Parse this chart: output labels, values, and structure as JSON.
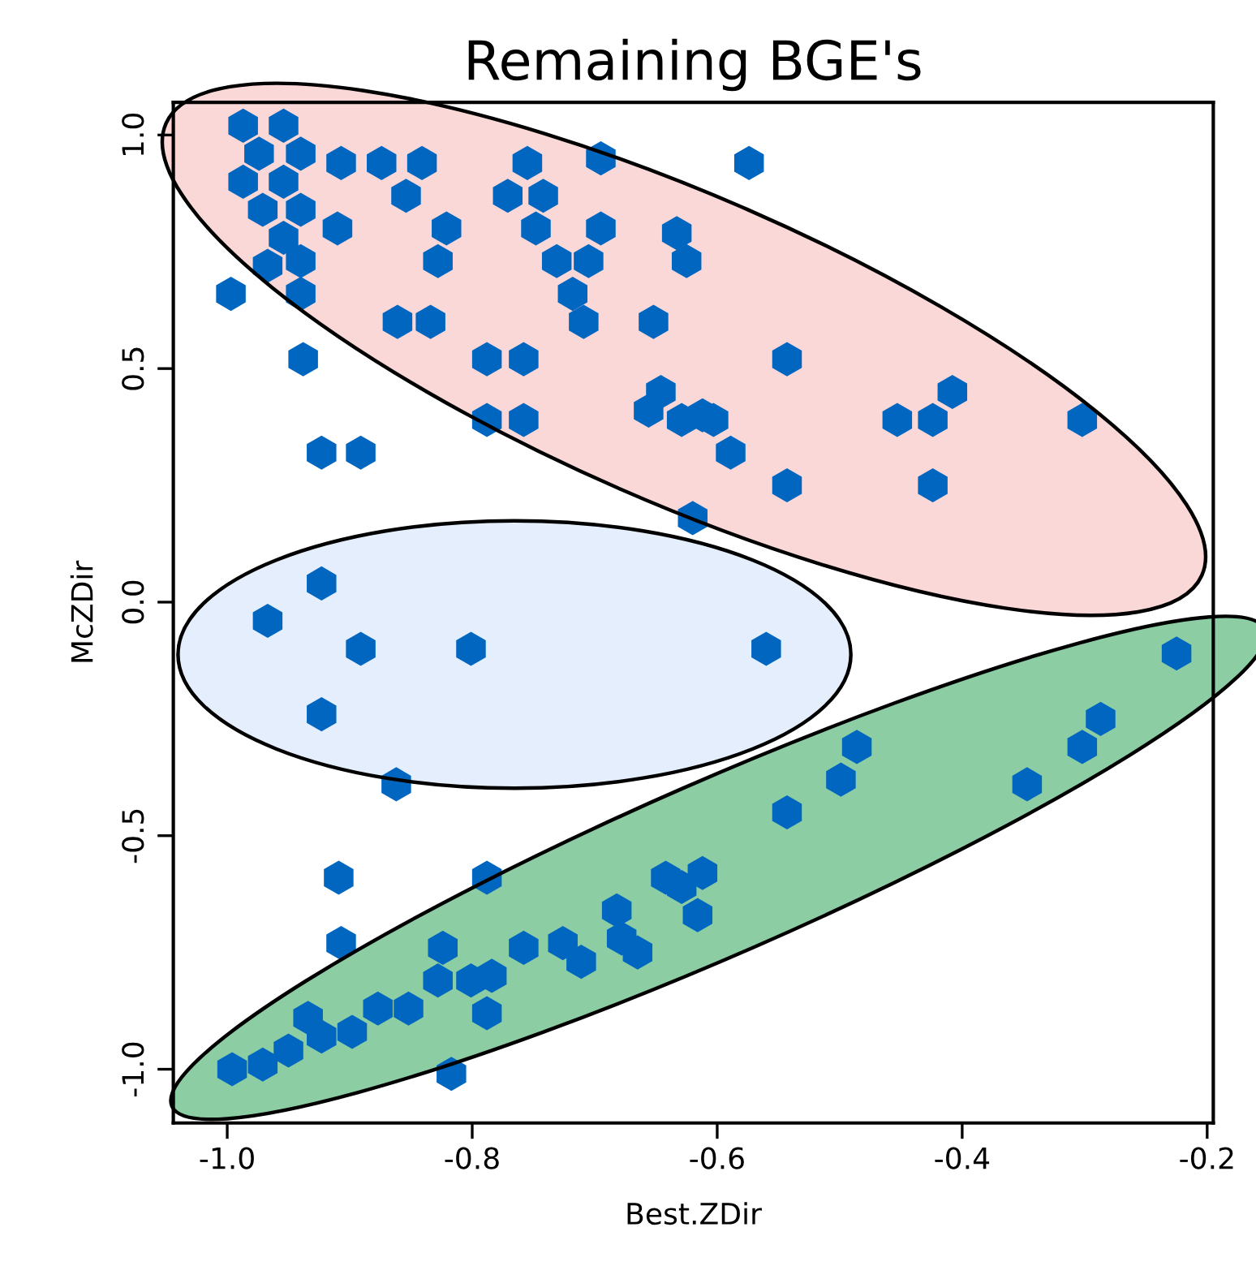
{
  "chart_data": {
    "type": "scatter",
    "title": "Remaining BGE's",
    "xlabel": "Best.ZDir",
    "ylabel": "McZDir",
    "x": [
      -0.987,
      -0.954,
      -0.974,
      -0.94,
      -0.987,
      -0.954,
      -0.971,
      -0.94,
      -0.954,
      -0.94,
      -0.967,
      -0.94,
      -0.907,
      -0.874,
      -0.841,
      -0.91,
      -0.854,
      -0.821,
      -0.828,
      -0.861,
      -0.834,
      -0.788,
      -0.758,
      -0.788,
      -0.758,
      -0.755,
      -0.771,
      -0.742,
      -0.748,
      -0.695,
      -0.731,
      -0.705,
      -0.718,
      -0.709,
      -0.695,
      -0.633,
      -0.625,
      -0.652,
      -0.656,
      -0.646,
      -0.629,
      -0.612,
      -0.62,
      -0.543,
      -0.543,
      -0.603,
      -0.589,
      -0.453,
      -0.424,
      -0.408,
      -0.424,
      -0.302,
      -0.574,
      -0.997,
      -0.938,
      -0.923,
      -0.891,
      -0.923,
      -0.967,
      -0.891,
      -0.801,
      -0.923,
      -0.862,
      -0.56,
      -0.909,
      -0.907,
      -0.788,
      -0.817,
      -0.996,
      -0.971,
      -0.95,
      -0.923,
      -0.898,
      -0.934,
      -0.877,
      -0.852,
      -0.824,
      -0.828,
      -0.801,
      -0.784,
      -0.788,
      -0.758,
      -0.726,
      -0.711,
      -0.678,
      -0.682,
      -0.629,
      -0.612,
      -0.642,
      -0.665,
      -0.616,
      -0.543,
      -0.499,
      -0.486,
      -0.347,
      -0.302,
      -0.287,
      -0.225
    ],
    "values": [
      1.02,
      1.02,
      0.96,
      0.96,
      0.9,
      0.9,
      0.84,
      0.84,
      0.78,
      0.73,
      0.72,
      0.66,
      0.94,
      0.94,
      0.94,
      0.8,
      0.87,
      0.8,
      0.73,
      0.6,
      0.6,
      0.52,
      0.52,
      0.39,
      0.39,
      0.94,
      0.87,
      0.87,
      0.8,
      0.8,
      0.73,
      0.73,
      0.66,
      0.6,
      0.95,
      0.79,
      0.73,
      0.6,
      0.41,
      0.45,
      0.39,
      0.4,
      0.18,
      0.52,
      0.25,
      0.39,
      0.32,
      0.39,
      0.39,
      0.45,
      0.25,
      0.39,
      0.94,
      0.66,
      0.52,
      0.32,
      0.32,
      0.04,
      -0.04,
      -0.1,
      -0.1,
      -0.24,
      -0.39,
      -0.1,
      -0.59,
      -0.73,
      -0.59,
      -1.01,
      -1.0,
      -0.99,
      -0.96,
      -0.93,
      -0.92,
      -0.89,
      -0.87,
      -0.87,
      -0.74,
      -0.81,
      -0.81,
      -0.8,
      -0.88,
      -0.74,
      -0.73,
      -0.77,
      -0.72,
      -0.66,
      -0.61,
      -0.58,
      -0.59,
      -0.75,
      -0.67,
      -0.45,
      -0.38,
      -0.31,
      -0.39,
      -0.31,
      -0.25,
      -0.11
    ],
    "color": "#0066c0",
    "xlim": [
      -1.044,
      -0.195
    ],
    "ylim": [
      -1.115,
      1.07
    ],
    "xticks": [
      {
        "value": -1,
        "label": "-1.0"
      },
      -0.8,
      -0.6,
      -0.4,
      -0.2
    ],
    "yticks": [
      {
        "value": -1,
        "label": "-1.0"
      },
      -0.5,
      {
        "value": 0,
        "label": "0.0"
      },
      0.5,
      {
        "value": 1,
        "label": "1.0"
      }
    ]
  }
}
